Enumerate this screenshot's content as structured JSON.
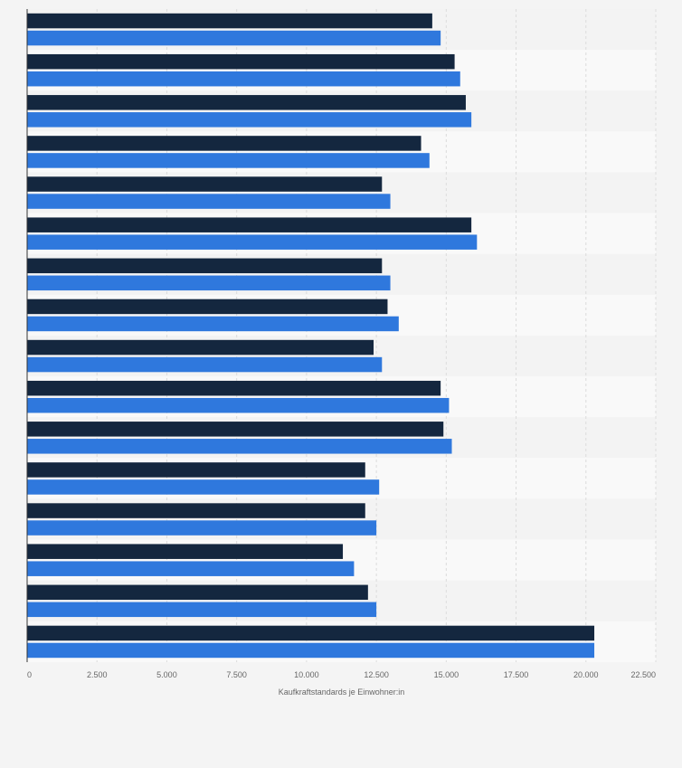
{
  "chart_data": {
    "type": "bar",
    "orientation": "horizontal",
    "title": "",
    "xlabel": "Kaufkraftstandards je Einwohner:in",
    "ylabel": "",
    "xlim": [
      0,
      22500
    ],
    "x_ticks": [
      0,
      2500,
      5000,
      7500,
      10000,
      12500,
      15000,
      17500,
      20000,
      22500
    ],
    "x_tick_labels": [
      "0",
      "2.500",
      "5.000",
      "7.500",
      "10.000",
      "12.500",
      "15.000",
      "17.500",
      "20.000",
      "22.500"
    ],
    "grid": true,
    "legend": "none",
    "categories": [
      "",
      "",
      "",
      "",
      "",
      "",
      "",
      "",
      "",
      "",
      "",
      "",
      "",
      "",
      "",
      ""
    ],
    "series": [
      {
        "color": "#14273f",
        "values": [
          14500,
          15300,
          15700,
          14100,
          12700,
          15900,
          12700,
          12900,
          12400,
          14800,
          14900,
          12100,
          12100,
          11300,
          12200,
          20300
        ]
      },
      {
        "color": "#2f78dd",
        "values": [
          14800,
          15500,
          15900,
          14400,
          13000,
          16100,
          13000,
          13300,
          12700,
          15100,
          15200,
          12600,
          12500,
          11700,
          12500,
          20300
        ]
      }
    ]
  }
}
